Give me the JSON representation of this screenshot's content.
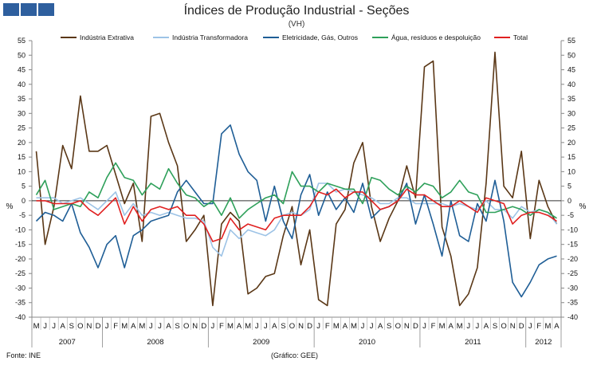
{
  "header": {
    "title": "Índices de Produção Industrial - Seções",
    "subtitle": "(VH)"
  },
  "footer": {
    "source": "Fonte: INE",
    "credit": "(Gráfico: GEE)"
  },
  "colors": {
    "brand_box": "#2e5f9e"
  },
  "chart_data": {
    "type": "line",
    "ylabel_left": "%",
    "ylabel_right": "%",
    "ylim": [
      -40,
      55
    ],
    "yticks": [
      -40,
      -35,
      -30,
      -25,
      -20,
      -15,
      -10,
      -5,
      0,
      5,
      10,
      15,
      20,
      25,
      30,
      35,
      40,
      45,
      50,
      55
    ],
    "grid": false,
    "legend_position": "top",
    "x": [
      "M",
      "J",
      "J",
      "A",
      "S",
      "O",
      "N",
      "D",
      "J",
      "F",
      "M",
      "A",
      "M",
      "J",
      "J",
      "A",
      "S",
      "O",
      "N",
      "D",
      "J",
      "F",
      "M",
      "A",
      "M",
      "J",
      "J",
      "A",
      "S",
      "O",
      "N",
      "D",
      "J",
      "F",
      "M",
      "A",
      "M",
      "J",
      "J",
      "A",
      "S",
      "O",
      "N",
      "D",
      "J",
      "F",
      "M",
      "A",
      "M",
      "J",
      "J",
      "A",
      "S",
      "O",
      "N",
      "D",
      "J",
      "F",
      "M",
      "A"
    ],
    "years": [
      {
        "label": "2007",
        "start": 0,
        "end": 7
      },
      {
        "label": "2008",
        "start": 8,
        "end": 19
      },
      {
        "label": "2009",
        "start": 20,
        "end": 31
      },
      {
        "label": "2010",
        "start": 32,
        "end": 43
      },
      {
        "label": "2011",
        "start": 44,
        "end": 55
      },
      {
        "label": "2012",
        "start": 56,
        "end": 59
      }
    ],
    "series": [
      {
        "name": "Indústria Extrativa",
        "color": "#5a3716",
        "values": [
          17,
          -15,
          -2,
          19,
          11,
          36,
          17,
          17,
          19,
          9,
          -1,
          6,
          -14,
          29,
          30,
          20,
          12,
          -14,
          -10,
          -5,
          -36,
          -8,
          -4,
          -7,
          -32,
          -30,
          -26,
          -25,
          -12,
          -2,
          -22,
          -10,
          -34,
          -36,
          -8,
          -3,
          13,
          20,
          -2,
          -14,
          -6,
          0,
          12,
          1,
          46,
          48,
          -9,
          -19,
          -36,
          -32,
          -23,
          6,
          51,
          5,
          1,
          17,
          -13,
          7,
          -2,
          -8
        ]
      },
      {
        "name": "Indústria Transformadora",
        "color": "#9dc3e6",
        "values": [
          1,
          1,
          1,
          -1,
          0,
          1,
          -1,
          -3,
          0,
          3,
          -5,
          -1,
          -5,
          -4,
          -5,
          -4,
          -5,
          -6,
          -6,
          -7,
          -16,
          -19,
          -10,
          -13,
          -10,
          -11,
          -12,
          -10,
          -5,
          -4,
          -5,
          -3,
          6,
          6,
          3,
          4,
          3,
          2,
          1,
          -1,
          -1,
          1,
          1,
          -1,
          -1,
          -1,
          -1,
          -2,
          -1,
          -2,
          -3,
          0,
          -3,
          -3,
          -6,
          -2,
          -4,
          -3,
          -4,
          -8
        ]
      },
      {
        "name": "Eletricidade, Gás, Outros",
        "color": "#1f5e96",
        "values": [
          -7,
          -4,
          -5,
          -7,
          -1,
          -11,
          -16,
          -23,
          -15,
          -12,
          -23,
          -12,
          -10,
          -7,
          -6,
          -5,
          3,
          7,
          3,
          -1,
          -1,
          23,
          26,
          16,
          10,
          7,
          -7,
          5,
          -7,
          -13,
          2,
          9,
          -5,
          3,
          -3,
          1,
          -4,
          6,
          -6,
          -3,
          -2,
          0,
          6,
          -8,
          2,
          -8,
          -19,
          0,
          -12,
          -14,
          -1,
          -7,
          7,
          -7,
          -28,
          -33,
          -28,
          -22,
          -20,
          -19
        ]
      },
      {
        "name": "Água, resíduos e despoluição",
        "color": "#2ea05a",
        "values": [
          2,
          7,
          -3,
          -2,
          -1,
          -2,
          3,
          1,
          8,
          13,
          8,
          7,
          2,
          6,
          4,
          11,
          6,
          2,
          1,
          -2,
          0,
          -5,
          1,
          -6,
          -3,
          -1,
          1,
          2,
          -1,
          10,
          5,
          5,
          3,
          6,
          5,
          4,
          4,
          -1,
          8,
          7,
          4,
          2,
          5,
          3,
          6,
          5,
          1,
          3,
          7,
          3,
          2,
          -4,
          -4,
          -3,
          -2,
          -3,
          -5,
          -3,
          -4,
          -6
        ]
      },
      {
        "name": "Total",
        "color": "#e02020",
        "values": [
          0,
          0,
          -1,
          -1,
          -1,
          0,
          -3,
          -5,
          -2,
          1,
          -8,
          -2,
          -7,
          -3,
          -2,
          -3,
          -2,
          -5,
          -5,
          -8,
          -14,
          -13,
          -6,
          -10,
          -8,
          -9,
          -10,
          -6,
          -5,
          -5,
          -5,
          -2,
          3,
          2,
          4,
          1,
          3,
          3,
          0,
          -3,
          -2,
          0,
          4,
          2,
          2,
          0,
          -2,
          -2,
          0,
          -2,
          -4,
          1,
          0,
          -1,
          -8,
          -5,
          -4,
          -4,
          -5,
          -7
        ]
      }
    ]
  }
}
